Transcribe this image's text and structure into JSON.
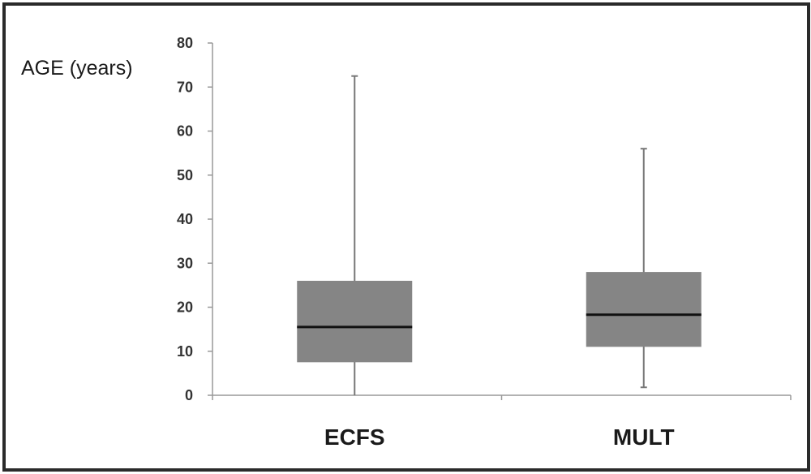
{
  "chart_data": {
    "type": "boxplot",
    "ylabel": "AGE (years)",
    "ylim": [
      0,
      80
    ],
    "yticks": [
      0,
      10,
      20,
      30,
      40,
      50,
      60,
      70,
      80
    ],
    "categories": [
      "ECFS",
      "MULT"
    ],
    "boxes": [
      {
        "category": "ECFS",
        "min": 0,
        "q1": 7.5,
        "median": 15.5,
        "q3": 26,
        "max": 72.5
      },
      {
        "category": "MULT",
        "min": 1.8,
        "q1": 11,
        "median": 18.3,
        "q3": 28,
        "max": 56
      }
    ],
    "colors": {
      "box": "#858585",
      "median": "#111111",
      "whisker": "#777777",
      "axis": "#999999"
    }
  }
}
